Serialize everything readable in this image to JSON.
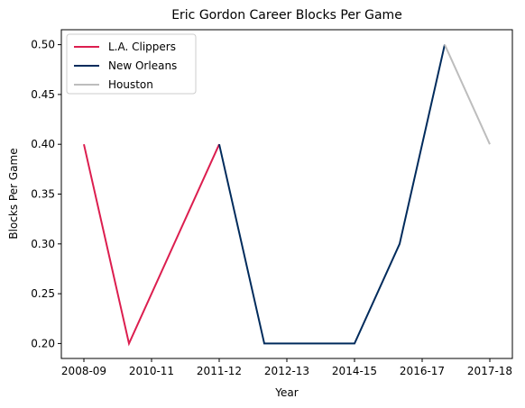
{
  "chart_data": {
    "type": "line",
    "title": "Eric Gordon Career Blocks Per Game",
    "xlabel": "Year",
    "ylabel": "Blocks Per Game",
    "x_tick_labels": [
      "2008-09",
      "2010-11",
      "2011-12",
      "2012-13",
      "2014-15",
      "2016-17",
      "2017-18"
    ],
    "ylim": [
      0.185,
      0.515
    ],
    "y_ticks": [
      0.2,
      0.25,
      0.3,
      0.35,
      0.4,
      0.45,
      0.5
    ],
    "y_tick_labels": [
      "0.20",
      "0.25",
      "0.30",
      "0.35",
      "0.40",
      "0.45",
      "0.50"
    ],
    "legend_position": "top-left",
    "grid": false,
    "series": [
      {
        "name": "L.A. Clippers",
        "color": "#dc1e4f",
        "x": [
          0,
          1,
          3
        ],
        "y": [
          0.4,
          0.2,
          0.4
        ]
      },
      {
        "name": "New Orleans",
        "color": "#002b5c",
        "x": [
          3,
          4,
          5,
          6,
          7,
          8
        ],
        "y": [
          0.4,
          0.2,
          0.2,
          0.2,
          0.3,
          0.5
        ]
      },
      {
        "name": "Houston",
        "color": "#bdbdbd",
        "x": [
          8,
          9
        ],
        "y": [
          0.5,
          0.4
        ]
      }
    ]
  }
}
